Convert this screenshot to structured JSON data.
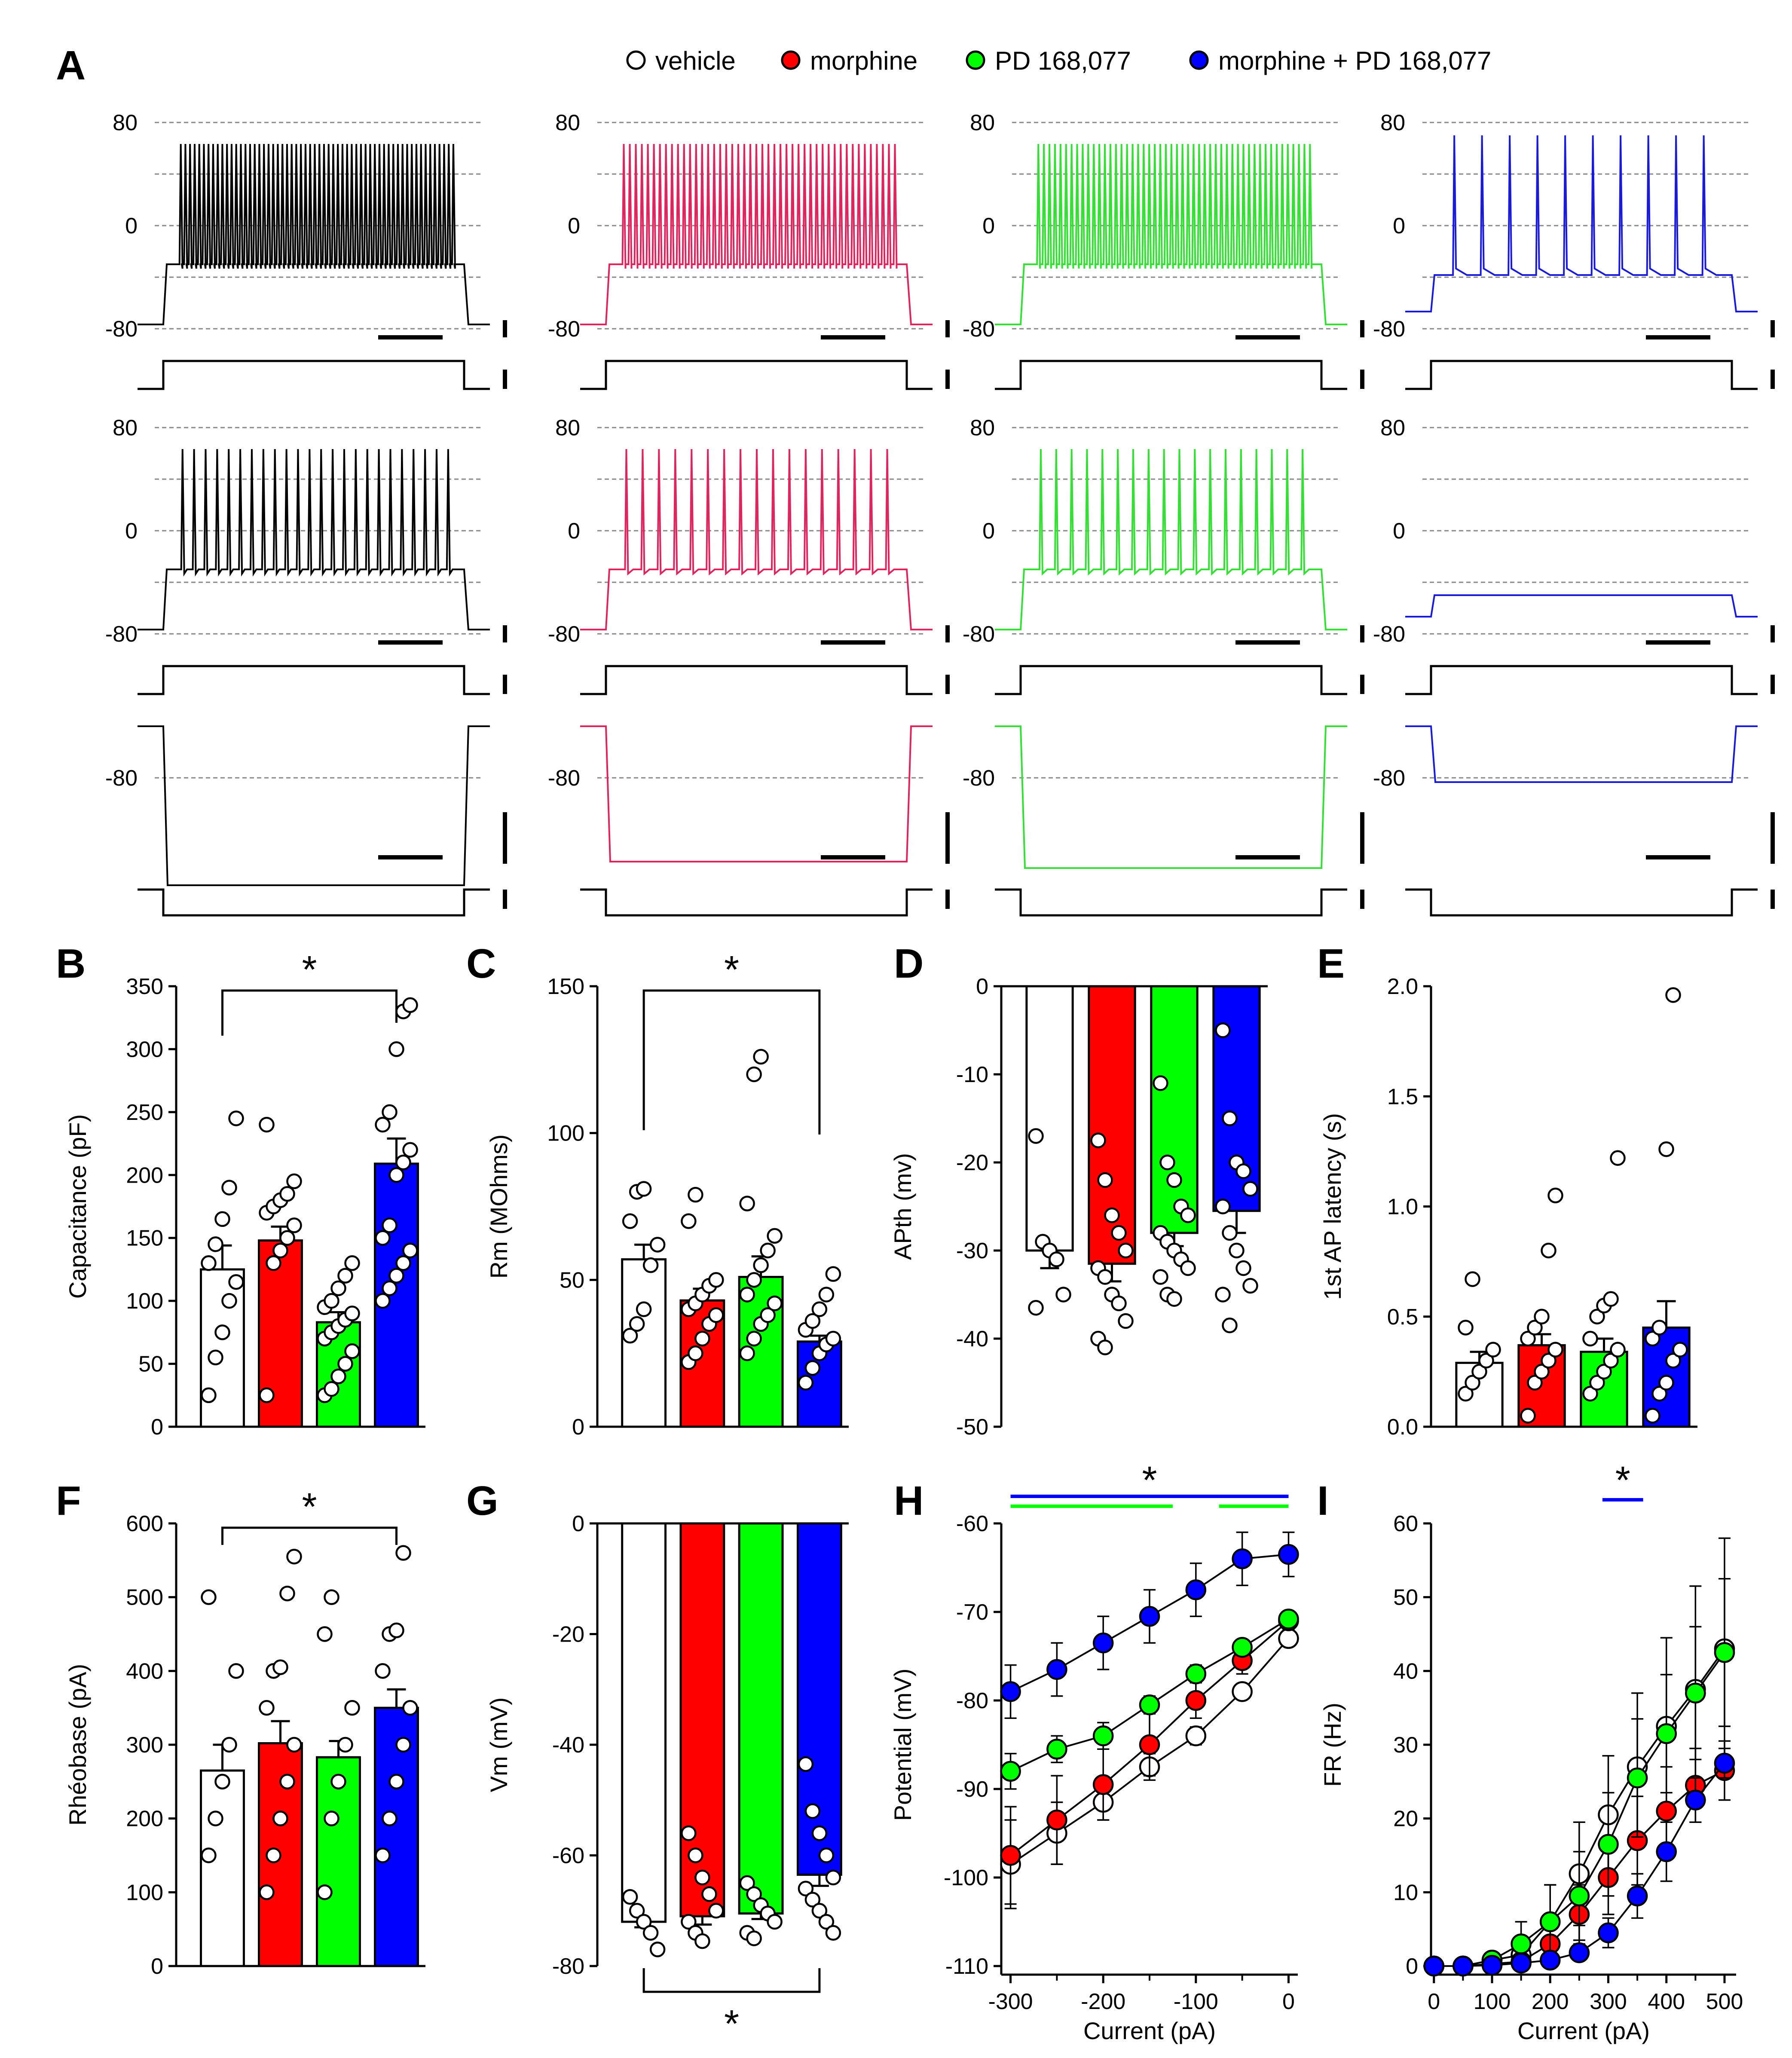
{
  "colors": {
    "vehicle": "#ffffff",
    "morphine": "#ff0000",
    "pd": "#00ff00",
    "combo": "#0000ff",
    "trace_vehicle": "#000000",
    "trace_morphine": "#e0245e",
    "trace_pd": "#33e033",
    "trace_combo": "#1a1adb"
  },
  "legend": [
    {
      "key": "vehicle",
      "label": "vehicle"
    },
    {
      "key": "morphine",
      "label": "morphine"
    },
    {
      "key": "pd",
      "label": "PD 168,077"
    },
    {
      "key": "combo",
      "label": "morphine + PD 168,077"
    }
  ],
  "panel_letters": {
    "A": "A",
    "B": "B",
    "C": "C",
    "D": "D",
    "E": "E",
    "F": "F",
    "G": "G",
    "H": "H",
    "I": "I"
  },
  "significance": "*",
  "traces": {
    "row1_ticks": [
      "80",
      "0",
      "-80"
    ],
    "row2_ticks": [
      "80",
      "0",
      "-80"
    ],
    "row3_ticks": [
      "-80"
    ],
    "row1_spikes": [
      60,
      46,
      50,
      10
    ],
    "row2_spikes": [
      24,
      17,
      18,
      0
    ]
  },
  "chart_data": [
    {
      "panel": "B",
      "type": "bar",
      "categories": [
        "vehicle",
        "morphine",
        "PD 168,077",
        "morphine + PD 168,077"
      ],
      "values": [
        125,
        148,
        83,
        209
      ],
      "errors": [
        19,
        11,
        8,
        20
      ],
      "ylabel": "Capacitance (pF)",
      "ylim": [
        0,
        350
      ],
      "yticks": [
        "0",
        "50",
        "100",
        "150",
        "200",
        "250",
        "300",
        "350"
      ],
      "points": [
        [
          25,
          55,
          75,
          100,
          115,
          130,
          145,
          165,
          190,
          245
        ],
        [
          25,
          130,
          140,
          150,
          160,
          170,
          175,
          180,
          185,
          195,
          240
        ],
        [
          25,
          30,
          40,
          50,
          60,
          70,
          75,
          80,
          85,
          90,
          95,
          100,
          110,
          120,
          130
        ],
        [
          100,
          110,
          120,
          130,
          140,
          150,
          160,
          200,
          210,
          220,
          240,
          250,
          300,
          330,
          335
        ]
      ],
      "sig": "vehicle-vs-combo"
    },
    {
      "panel": "C",
      "type": "bar",
      "categories": [
        "vehicle",
        "morphine",
        "PD 168,077",
        "morphine + PD 168,077"
      ],
      "values": [
        57,
        43,
        51,
        29
      ],
      "errors": [
        5,
        4,
        7,
        2
      ],
      "ylabel": "Rm (MOhms)",
      "ylim": [
        0,
        150
      ],
      "yticks": [
        "0",
        "50",
        "100",
        "150"
      ],
      "points": [
        [
          31,
          35,
          40,
          55,
          62,
          70,
          80,
          81
        ],
        [
          22,
          25,
          30,
          35,
          38,
          40,
          42,
          45,
          48,
          50,
          70,
          79
        ],
        [
          25,
          30,
          35,
          38,
          42,
          45,
          50,
          55,
          60,
          65,
          76,
          120,
          126
        ],
        [
          15,
          20,
          25,
          28,
          30,
          33,
          36,
          40,
          45,
          52
        ]
      ],
      "sig": "vehicle-vs-combo"
    },
    {
      "panel": "D",
      "type": "bar",
      "categories": [
        "vehicle",
        "morphine",
        "PD 168,077",
        "morphine + PD 168,077"
      ],
      "values": [
        -30,
        -31.5,
        -28,
        -25.5
      ],
      "errors": [
        2,
        2,
        1.5,
        2.5
      ],
      "ylabel": "APth (mv)",
      "ylim": [
        -50,
        0
      ],
      "yticks": [
        "0",
        "-10",
        "-20",
        "-30",
        "-40",
        "-50"
      ],
      "points": [
        [
          -17,
          -29,
          -30,
          -31,
          -35,
          -36.5
        ],
        [
          -17.5,
          -22,
          -26,
          -28,
          -30,
          -32,
          -33,
          -35,
          -36,
          -38,
          -40,
          -41
        ],
        [
          -11,
          -20,
          -22,
          -25,
          -26,
          -28,
          -29,
          -30,
          -31,
          -32,
          -33,
          -35,
          -35.5
        ],
        [
          -5,
          -15,
          -20,
          -21,
          -23,
          -25,
          -28,
          -30,
          -32,
          -34,
          -35,
          -38.5
        ]
      ]
    },
    {
      "panel": "E",
      "type": "bar",
      "categories": [
        "vehicle",
        "morphine",
        "PD 168,077",
        "morphine + PD 168,077"
      ],
      "values": [
        0.29,
        0.37,
        0.34,
        0.45
      ],
      "errors": [
        0.05,
        0.05,
        0.06,
        0.12
      ],
      "ylabel": "1st AP latency (s)",
      "ylim": [
        0,
        2
      ],
      "yticks": [
        "0.0",
        "0.5",
        "1.0",
        "1.5",
        "2.0"
      ],
      "points": [
        [
          0.15,
          0.2,
          0.25,
          0.3,
          0.35,
          0.45,
          0.67
        ],
        [
          0.05,
          0.2,
          0.25,
          0.3,
          0.35,
          0.4,
          0.45,
          0.5,
          0.8,
          1.05
        ],
        [
          0.15,
          0.2,
          0.25,
          0.3,
          0.35,
          0.4,
          0.5,
          0.55,
          0.58,
          1.22
        ],
        [
          0.05,
          0.15,
          0.2,
          0.3,
          0.35,
          0.4,
          0.45,
          1.26,
          1.96
        ]
      ]
    },
    {
      "panel": "F",
      "type": "bar",
      "categories": [
        "vehicle",
        "morphine",
        "PD 168,077",
        "morphine + PD 168,077"
      ],
      "values": [
        265,
        302,
        283,
        350
      ],
      "errors": [
        35,
        30,
        22,
        25
      ],
      "ylabel": "Rhéobase (pA)",
      "ylim": [
        0,
        600
      ],
      "yticks": [
        "0",
        "100",
        "200",
        "300",
        "400",
        "500",
        "600"
      ],
      "points": [
        [
          150,
          200,
          250,
          300,
          400,
          500
        ],
        [
          100,
          150,
          200,
          250,
          300,
          350,
          400,
          405,
          505,
          555
        ],
        [
          100,
          200,
          250,
          300,
          350,
          450,
          500
        ],
        [
          150,
          200,
          250,
          300,
          350,
          400,
          450,
          455,
          560
        ]
      ],
      "sig": "vehicle-vs-combo"
    },
    {
      "panel": "G",
      "type": "bar",
      "categories": [
        "vehicle",
        "morphine",
        "PD 168,077",
        "morphine + PD 168,077"
      ],
      "values": [
        -72,
        -71,
        -70.5,
        -63.5
      ],
      "errors": [
        1,
        1.5,
        1,
        2
      ],
      "ylabel": "Vm (mV)",
      "ylim": [
        -80,
        0
      ],
      "yticks": [
        "0",
        "-20",
        "-40",
        "-60",
        "-80"
      ],
      "points": [
        [
          -67.5,
          -70,
          -72,
          -74,
          -77
        ],
        [
          -56,
          -60,
          -64,
          -67,
          -70,
          -72,
          -74,
          -75.5
        ],
        [
          -65,
          -67,
          -69,
          -70.5,
          -72,
          -74,
          -75
        ],
        [
          -43.5,
          -52,
          -56,
          -60,
          -64,
          -66,
          -68,
          -70,
          -72,
          -74
        ]
      ],
      "sig": "vehicle-vs-combo"
    },
    {
      "panel": "H",
      "type": "line",
      "x": [
        -300,
        -250,
        -200,
        -150,
        -100,
        -50,
        0
      ],
      "xlabel": "Current (pA)",
      "ylabel": "Potential (mV)",
      "xlim": [
        -310,
        10
      ],
      "ylim": [
        -110,
        -60
      ],
      "xticks": [
        "-300",
        "-200",
        "-100",
        "0"
      ],
      "yticks": [
        "-60",
        "-70",
        "-80",
        "-90",
        "-100",
        "-110"
      ],
      "series": [
        {
          "name": "vehicle",
          "values": [
            -98.5,
            -95,
            -91.5,
            -87.5,
            -84,
            -79,
            -73
          ],
          "errors": [
            5,
            3.5,
            2,
            1.5,
            1,
            0.8,
            0.8
          ]
        },
        {
          "name": "morphine",
          "values": [
            -97.5,
            -93.5,
            -89.5,
            -85,
            -80,
            -75.5,
            -71
          ],
          "errors": [
            5.5,
            5,
            4,
            3.5,
            2,
            1.5,
            1
          ]
        },
        {
          "name": "PD 168,077",
          "values": [
            -88,
            -85.5,
            -84,
            -80.5,
            -77,
            -74,
            -70.8
          ],
          "errors": [
            2,
            1.5,
            1.5,
            1,
            1,
            0.8,
            0.8
          ]
        },
        {
          "name": "morphine + PD 168,077",
          "values": [
            -79,
            -76.5,
            -73.5,
            -70.5,
            -67.5,
            -64,
            -63.5
          ],
          "errors": [
            3,
            3,
            3,
            3,
            3,
            3,
            2.5
          ]
        }
      ],
      "sig_blue": "-300 to 0",
      "sig_green": [
        "-300 to -125",
        "-75 to 0"
      ]
    },
    {
      "panel": "I",
      "type": "line",
      "x": [
        0,
        50,
        100,
        150,
        200,
        250,
        300,
        350,
        400,
        450,
        500
      ],
      "xlabel": "Current (pA)",
      "ylabel": "FR (Hz)",
      "xlim": [
        -5,
        520
      ],
      "ylim": [
        0,
        60
      ],
      "xticks": [
        "0",
        "100",
        "200",
        "300",
        "400",
        "500"
      ],
      "yticks": [
        "0",
        "10",
        "20",
        "30",
        "40",
        "50",
        "60"
      ],
      "series": [
        {
          "name": "vehicle",
          "values": [
            0,
            0,
            0.8,
            1.5,
            6,
            12.5,
            20.5,
            27,
            32.5,
            37.5,
            43
          ],
          "errors": [
            0,
            0,
            0.5,
            1.5,
            5,
            7,
            8,
            10,
            12,
            14,
            15
          ]
        },
        {
          "name": "morphine",
          "values": [
            0,
            0,
            0.3,
            0.6,
            3,
            7,
            12,
            17,
            21,
            24.5,
            26.5
          ],
          "errors": [
            0,
            0,
            0.2,
            0.5,
            2,
            4,
            5,
            6,
            6,
            5,
            4
          ]
        },
        {
          "name": "PD 168,077",
          "values": [
            0,
            0,
            0.8,
            3,
            6,
            9.5,
            16.5,
            25.5,
            31.5,
            37,
            42.5
          ],
          "errors": [
            0,
            0,
            0.5,
            3,
            5,
            6,
            7,
            8,
            8,
            9,
            10
          ]
        },
        {
          "name": "morphine + PD 168,077",
          "values": [
            0,
            0,
            0.1,
            0.4,
            0.8,
            1.8,
            4.5,
            9.5,
            15.5,
            22.5,
            27.5
          ],
          "errors": [
            0,
            0,
            0.1,
            0.3,
            0.5,
            1,
            2,
            3,
            4,
            3,
            2
          ]
        }
      ],
      "sig_blue": "300 to 350"
    }
  ]
}
